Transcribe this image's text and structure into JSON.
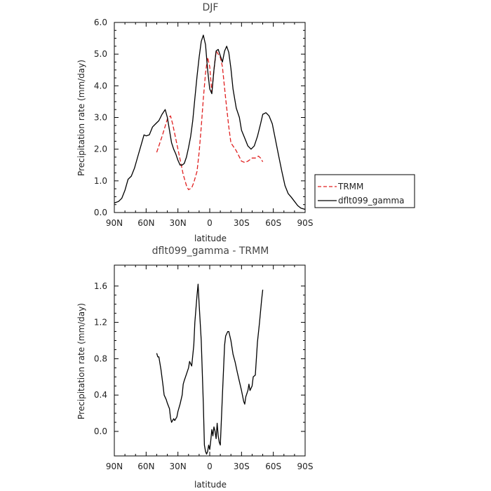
{
  "chart_data": [
    {
      "type": "line",
      "title": "DJF",
      "xlabel": "latitude",
      "ylabel": "Precipitation rate (mm/day)",
      "x_ticks": [
        "90N",
        "60N",
        "30N",
        "0",
        "30S",
        "60S",
        "90S"
      ],
      "y_ticks": [
        "0.0",
        "1.0",
        "2.0",
        "3.0",
        "4.0",
        "5.0",
        "6.0"
      ],
      "xlim": [
        90,
        -90
      ],
      "ylim": [
        0,
        6
      ],
      "legend_position": "right",
      "series": [
        {
          "name": "TRMM",
          "style": "dashed",
          "color": "#e02020",
          "x": [
            50,
            45,
            40,
            37,
            35,
            30,
            25,
            22,
            20,
            17,
            15,
            12,
            10,
            8,
            6,
            4,
            2,
            0,
            -2,
            -4,
            -6,
            -8,
            -10,
            -12,
            -15,
            -18,
            -20,
            -25,
            -30,
            -33,
            -36,
            -40,
            -43,
            -46,
            -48,
            -50
          ],
          "y": [
            1.9,
            2.4,
            2.95,
            3.05,
            2.8,
            2.0,
            1.2,
            0.85,
            0.72,
            0.78,
            0.95,
            1.3,
            1.9,
            2.7,
            3.6,
            4.4,
            4.9,
            4.6,
            3.8,
            4.5,
            5.1,
            5.0,
            4.9,
            4.6,
            3.6,
            2.7,
            2.2,
            1.95,
            1.62,
            1.58,
            1.62,
            1.72,
            1.72,
            1.78,
            1.72,
            1.6
          ]
        },
        {
          "name": "dflt099_gamma",
          "style": "solid",
          "color": "#000000",
          "x": [
            90,
            86,
            83,
            80,
            77,
            74,
            71,
            68,
            65,
            62,
            60,
            57,
            54,
            51,
            48,
            45,
            42,
            40,
            38,
            36,
            34,
            32,
            30,
            28,
            26,
            24,
            22,
            20,
            18,
            16,
            14,
            12,
            10,
            8,
            6,
            4,
            2,
            0,
            -2,
            -4,
            -6,
            -8,
            -10,
            -12,
            -14,
            -16,
            -18,
            -20,
            -22,
            -25,
            -28,
            -30,
            -33,
            -36,
            -39,
            -42,
            -45,
            -48,
            -50,
            -53,
            -56,
            -59,
            -62,
            -65,
            -68,
            -71,
            -74,
            -77,
            -80,
            -83,
            -86,
            -90
          ],
          "y": [
            0.3,
            0.35,
            0.45,
            0.7,
            1.05,
            1.15,
            1.4,
            1.75,
            2.1,
            2.45,
            2.42,
            2.45,
            2.7,
            2.8,
            2.9,
            3.1,
            3.25,
            3.0,
            2.6,
            2.2,
            2.0,
            1.85,
            1.65,
            1.5,
            1.5,
            1.55,
            1.75,
            2.05,
            2.4,
            2.9,
            3.6,
            4.3,
            4.9,
            5.4,
            5.6,
            5.3,
            4.5,
            3.9,
            3.75,
            4.5,
            5.1,
            5.15,
            4.95,
            4.75,
            5.1,
            5.25,
            5.05,
            4.55,
            3.9,
            3.3,
            3.0,
            2.6,
            2.35,
            2.1,
            2.0,
            2.1,
            2.4,
            2.8,
            3.1,
            3.15,
            3.05,
            2.8,
            2.3,
            1.8,
            1.3,
            0.85,
            0.6,
            0.48,
            0.35,
            0.22,
            0.14,
            0.1
          ]
        }
      ]
    },
    {
      "type": "line",
      "title": "dflt099_gamma - TRMM",
      "xlabel": "latitude",
      "ylabel": "Precipitation rate (mm/day)",
      "x_ticks": [
        "90N",
        "60N",
        "30N",
        "0",
        "30S",
        "60S",
        "90S"
      ],
      "y_ticks": [
        "0.0",
        "0.4",
        "0.8",
        "1.2",
        "1.6"
      ],
      "xlim": [
        90,
        -90
      ],
      "ylim": [
        -0.27,
        1.83
      ],
      "series": [
        {
          "name": "",
          "style": "solid",
          "color": "#000000",
          "x": [
            50,
            49,
            48,
            46,
            44,
            43,
            41,
            40,
            38,
            37,
            36,
            34,
            33,
            31,
            30,
            28,
            26,
            25,
            24,
            22,
            20,
            19,
            17,
            15,
            14,
            12,
            11,
            10,
            8,
            6,
            5,
            4,
            3,
            2,
            1,
            0,
            -1,
            -2,
            -3,
            -4,
            -5,
            -6,
            -7,
            -8,
            -9,
            -10,
            -12,
            -14,
            -15,
            -17,
            -18,
            -20,
            -22,
            -24,
            -26,
            -28,
            -30,
            -32,
            -33,
            -34,
            -36,
            -37,
            -38,
            -40,
            -41,
            -43,
            -45,
            -47,
            -49,
            -50
          ],
          "y": [
            0.86,
            0.82,
            0.82,
            0.68,
            0.5,
            0.4,
            0.35,
            0.31,
            0.25,
            0.15,
            0.1,
            0.14,
            0.12,
            0.16,
            0.22,
            0.3,
            0.4,
            0.52,
            0.56,
            0.63,
            0.7,
            0.77,
            0.72,
            0.95,
            1.2,
            1.5,
            1.62,
            1.4,
            1.0,
            0.3,
            -0.15,
            -0.22,
            -0.25,
            -0.22,
            -0.15,
            -0.2,
            -0.1,
            0.02,
            -0.05,
            0.05,
            0.0,
            -0.08,
            0.09,
            -0.05,
            -0.12,
            -0.15,
            0.4,
            0.95,
            1.05,
            1.1,
            1.1,
            1.0,
            0.85,
            0.76,
            0.65,
            0.55,
            0.45,
            0.33,
            0.3,
            0.38,
            0.45,
            0.52,
            0.45,
            0.5,
            0.6,
            0.62,
            0.98,
            1.2,
            1.45,
            1.56
          ]
        }
      ]
    }
  ]
}
